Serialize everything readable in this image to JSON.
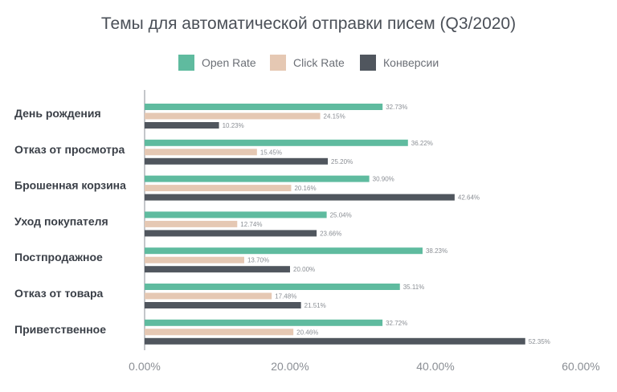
{
  "chart_data": {
    "type": "bar",
    "orientation": "horizontal",
    "title": "Темы для автоматической отправки писем (Q3/2020)",
    "categories": [
      "День рождения",
      "Отказ от просмотра",
      "Брошенная корзина",
      "Уход покупателя",
      "Постпродажное",
      "Отказ от товара",
      "Приветственное"
    ],
    "series": [
      {
        "name": "Open Rate",
        "color": "#5fbb9f",
        "values": [
          32.73,
          36.22,
          30.9,
          25.04,
          38.23,
          35.11,
          32.72
        ],
        "labels": [
          "32.73%",
          "36.22%",
          "30.90%",
          "25.04%",
          "38.23%",
          "35.11%",
          "32.72%"
        ]
      },
      {
        "name": "Click Rate",
        "color": "#e5c8b3",
        "values": [
          24.15,
          15.45,
          20.16,
          12.74,
          13.7,
          17.48,
          20.46
        ],
        "labels": [
          "24.15%",
          "15.45%",
          "20.16%",
          "12.74%",
          "13.70%",
          "17.48%",
          "20.46%"
        ]
      },
      {
        "name": "Конверсии",
        "color": "#50565e",
        "values": [
          10.23,
          25.2,
          42.64,
          23.66,
          20.0,
          21.51,
          52.35
        ],
        "labels": [
          "10.23%",
          "25.20%",
          "42.64%",
          "23.66%",
          "20.00%",
          "21.51%",
          "52.35%"
        ]
      }
    ],
    "xlim": [
      0,
      60
    ],
    "xticks": [
      0,
      20,
      40,
      60
    ],
    "xtick_labels": [
      "0.00%",
      "20.00%",
      "40.00%",
      "60.00%"
    ],
    "legend_position": "top-center",
    "grid": false
  }
}
